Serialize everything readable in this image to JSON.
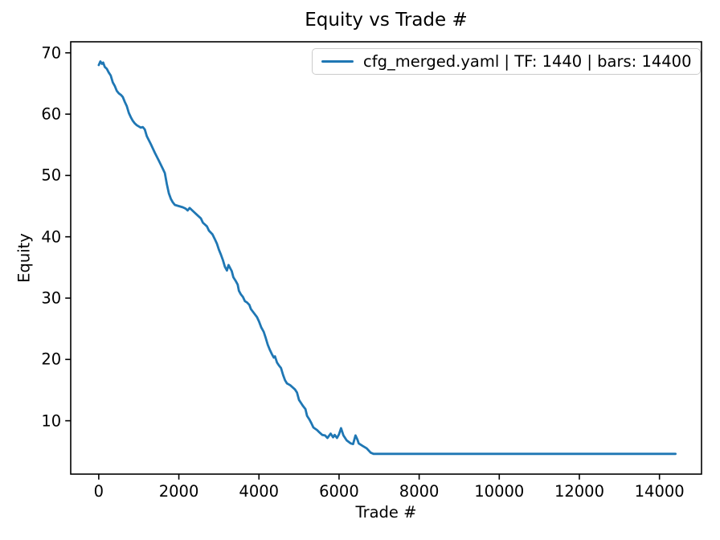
{
  "window": {
    "background": "#ffffff"
  },
  "chart": {
    "title": "Equity vs Trade #",
    "xlabel": "Trade #",
    "ylabel": "Equity"
  },
  "legend": {
    "label": "cfg_merged.yaml | TF: 1440 | bars: 14400",
    "line_color": "#1f77b4",
    "position": "upper right"
  },
  "chart_data": {
    "type": "line",
    "title": "Equity vs Trade #",
    "xlabel": "Trade #",
    "ylabel": "Equity",
    "grid": false,
    "legend_position": "upper right",
    "xlim": [
      -700,
      15050
    ],
    "ylim": [
      1.3,
      71.8
    ],
    "xticks": [
      0,
      2000,
      4000,
      6000,
      8000,
      10000,
      12000,
      14000
    ],
    "yticks": [
      10,
      20,
      30,
      40,
      50,
      60,
      70
    ],
    "axis_color": "#000000",
    "series": [
      {
        "name": "cfg_merged.yaml | TF: 1440 | bars: 14400",
        "color": "#1f77b4",
        "points": [
          [
            0,
            68.0
          ],
          [
            40,
            68.6
          ],
          [
            80,
            68.2
          ],
          [
            110,
            68.4
          ],
          [
            150,
            67.7
          ],
          [
            200,
            67.4
          ],
          [
            250,
            66.8
          ],
          [
            300,
            66.3
          ],
          [
            350,
            65.2
          ],
          [
            400,
            64.6
          ],
          [
            450,
            63.8
          ],
          [
            500,
            63.4
          ],
          [
            560,
            63.1
          ],
          [
            600,
            62.8
          ],
          [
            650,
            62.0
          ],
          [
            700,
            61.3
          ],
          [
            750,
            60.2
          ],
          [
            800,
            59.5
          ],
          [
            850,
            58.9
          ],
          [
            900,
            58.5
          ],
          [
            950,
            58.2
          ],
          [
            1000,
            58.0
          ],
          [
            1050,
            57.8
          ],
          [
            1100,
            57.9
          ],
          [
            1150,
            57.5
          ],
          [
            1200,
            56.4
          ],
          [
            1300,
            55.1
          ],
          [
            1400,
            53.7
          ],
          [
            1500,
            52.4
          ],
          [
            1600,
            51.1
          ],
          [
            1650,
            50.4
          ],
          [
            1700,
            48.6
          ],
          [
            1750,
            47.1
          ],
          [
            1800,
            46.2
          ],
          [
            1850,
            45.6
          ],
          [
            1900,
            45.2
          ],
          [
            2000,
            45.0
          ],
          [
            2100,
            44.8
          ],
          [
            2170,
            44.6
          ],
          [
            2220,
            44.3
          ],
          [
            2270,
            44.7
          ],
          [
            2320,
            44.4
          ],
          [
            2400,
            43.9
          ],
          [
            2450,
            43.6
          ],
          [
            2550,
            43.0
          ],
          [
            2600,
            42.3
          ],
          [
            2700,
            41.7
          ],
          [
            2750,
            41.0
          ],
          [
            2840,
            40.4
          ],
          [
            2900,
            39.6
          ],
          [
            2950,
            38.9
          ],
          [
            3000,
            37.9
          ],
          [
            3050,
            37.1
          ],
          [
            3100,
            36.2
          ],
          [
            3150,
            35.1
          ],
          [
            3200,
            34.5
          ],
          [
            3240,
            35.4
          ],
          [
            3280,
            34.9
          ],
          [
            3320,
            34.4
          ],
          [
            3360,
            33.4
          ],
          [
            3420,
            32.8
          ],
          [
            3470,
            32.2
          ],
          [
            3500,
            31.2
          ],
          [
            3550,
            30.6
          ],
          [
            3600,
            30.2
          ],
          [
            3650,
            29.5
          ],
          [
            3700,
            29.3
          ],
          [
            3760,
            28.9
          ],
          [
            3800,
            28.2
          ],
          [
            3870,
            27.6
          ],
          [
            3950,
            26.9
          ],
          [
            4000,
            26.2
          ],
          [
            4060,
            25.2
          ],
          [
            4120,
            24.5
          ],
          [
            4170,
            23.5
          ],
          [
            4220,
            22.4
          ],
          [
            4270,
            21.6
          ],
          [
            4320,
            20.9
          ],
          [
            4370,
            20.3
          ],
          [
            4400,
            20.5
          ],
          [
            4450,
            19.5
          ],
          [
            4500,
            19.0
          ],
          [
            4550,
            18.6
          ],
          [
            4600,
            17.5
          ],
          [
            4650,
            16.6
          ],
          [
            4700,
            16.1
          ],
          [
            4780,
            15.8
          ],
          [
            4850,
            15.4
          ],
          [
            4900,
            15.1
          ],
          [
            4950,
            14.6
          ],
          [
            5000,
            13.4
          ],
          [
            5050,
            12.9
          ],
          [
            5100,
            12.4
          ],
          [
            5160,
            11.9
          ],
          [
            5200,
            10.8
          ],
          [
            5260,
            10.2
          ],
          [
            5310,
            9.6
          ],
          [
            5360,
            8.9
          ],
          [
            5450,
            8.5
          ],
          [
            5510,
            8.1
          ],
          [
            5580,
            7.7
          ],
          [
            5650,
            7.6
          ],
          [
            5710,
            7.2
          ],
          [
            5790,
            7.9
          ],
          [
            5850,
            7.3
          ],
          [
            5890,
            7.7
          ],
          [
            5950,
            7.2
          ],
          [
            6000,
            7.8
          ],
          [
            6050,
            8.8
          ],
          [
            6110,
            7.6
          ],
          [
            6190,
            6.8
          ],
          [
            6290,
            6.3
          ],
          [
            6350,
            6.2
          ],
          [
            6410,
            7.6
          ],
          [
            6460,
            6.9
          ],
          [
            6490,
            6.3
          ],
          [
            6590,
            5.9
          ],
          [
            6690,
            5.5
          ],
          [
            6790,
            4.8
          ],
          [
            6860,
            4.6
          ],
          [
            14400,
            4.6
          ]
        ]
      }
    ]
  }
}
